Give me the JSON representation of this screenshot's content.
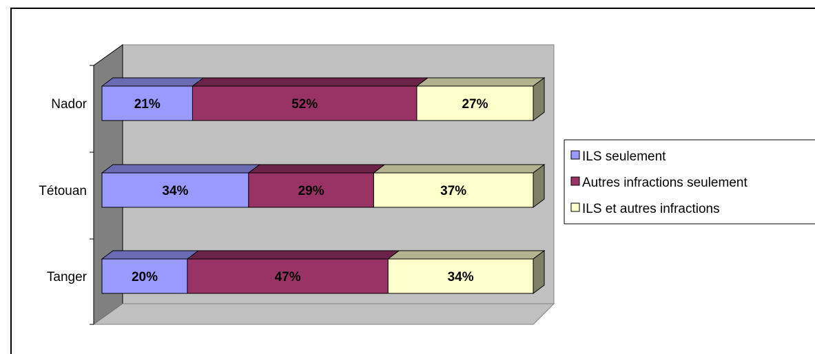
{
  "chart_data": {
    "type": "bar",
    "orientation": "horizontal",
    "stacked": "100%",
    "style": "3d",
    "categories": [
      "Nador",
      "Tétouan",
      "Tanger"
    ],
    "series": [
      {
        "name": "ILS seulement",
        "values": [
          21,
          34,
          20
        ],
        "labels": [
          "21%",
          "34%",
          "20%"
        ],
        "color": "#9999ff"
      },
      {
        "name": "Autres infractions seulement",
        "values": [
          52,
          29,
          47
        ],
        "labels": [
          "52%",
          "29%",
          "47%"
        ],
        "color": "#993366"
      },
      {
        "name": "ILS et autres infractions",
        "values": [
          27,
          37,
          34
        ],
        "labels": [
          "27%",
          "37%",
          "34%"
        ],
        "color": "#ffffcc"
      }
    ],
    "xlim": [
      0,
      100
    ],
    "grid": false,
    "legend_position": "right",
    "title": "",
    "xlabel": "",
    "ylabel": ""
  },
  "colors": {
    "wall": "#c0c0c0",
    "side_wall": "#808080",
    "floor": "#c0c0c0",
    "axis": "#000000"
  }
}
